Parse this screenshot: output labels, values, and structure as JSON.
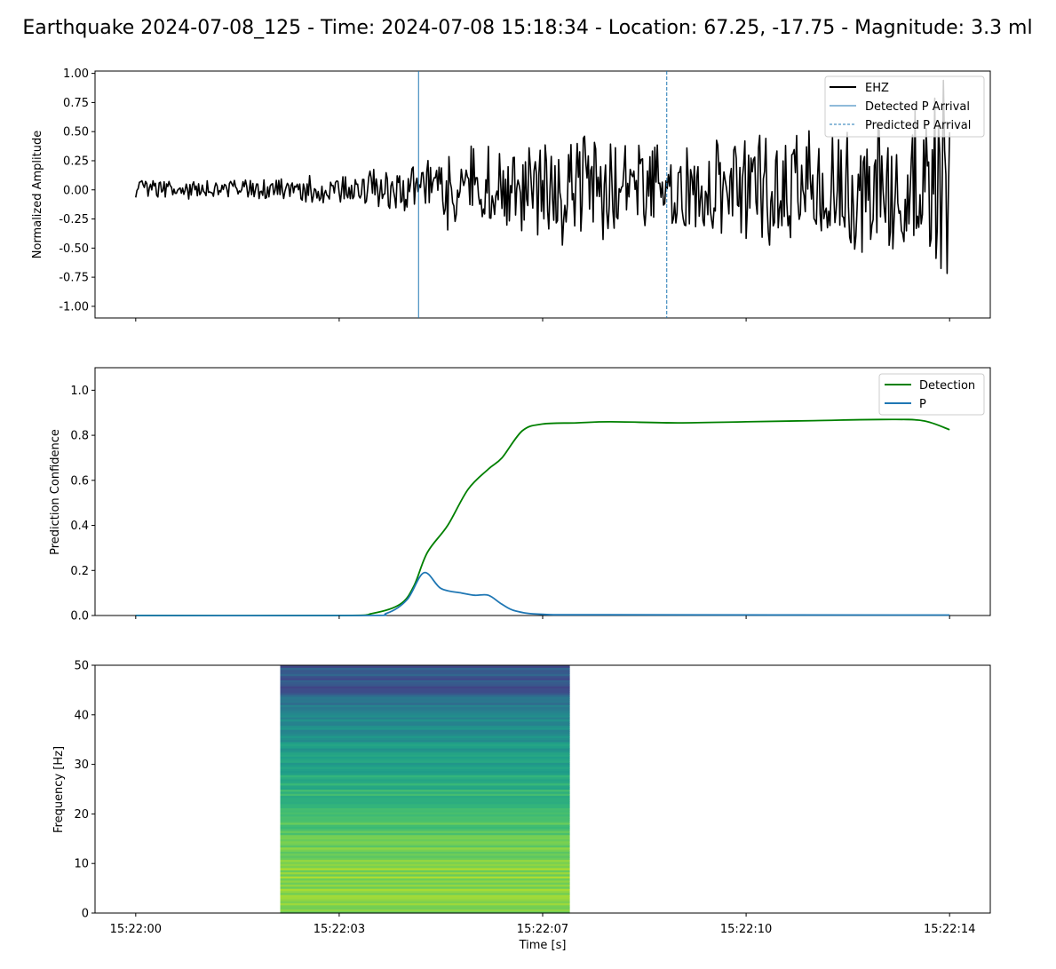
{
  "title": "Earthquake 2024-07-08_125 - Time: 2024-07-08 15:18:34 - Location: 67.25, -17.75 - Magnitude: 3.3 ml",
  "x_axis": {
    "label": "Time [s]",
    "ticks": [
      {
        "t": 0,
        "label": "15:22:00"
      },
      {
        "t": 3,
        "label": "15:22:03"
      },
      {
        "t": 6,
        "label": "15:22:07"
      },
      {
        "t": 9,
        "label": "15:22:10"
      },
      {
        "t": 12,
        "label": "15:22:14"
      }
    ],
    "range": [
      -0.6,
      12.6
    ]
  },
  "colors": {
    "waveform": "#000000",
    "detected_p": "#1f77b4",
    "predicted_p": "#1f77b4",
    "detection": "#008000",
    "p_prob": "#1f77b4"
  },
  "chart_data": [
    {
      "type": "line",
      "ylabel": "Normalized Amplitude",
      "ylim": [
        -1.1,
        1.02
      ],
      "yticks": [
        "1.00",
        "0.75",
        "0.50",
        "0.25",
        "0.00",
        "-0.25",
        "-0.50",
        "-0.75",
        "-1.00"
      ],
      "ytick_values": [
        1.0,
        0.75,
        0.5,
        0.25,
        0.0,
        -0.25,
        -0.5,
        -0.75,
        -1.0
      ],
      "legend_position": "top-right",
      "series": [
        {
          "name": "EHZ",
          "envelope": [
            [
              0,
              0.08
            ],
            [
              2,
              0.1
            ],
            [
              3,
              0.13
            ],
            [
              4,
              0.2
            ],
            [
              4.5,
              0.3
            ],
            [
              6,
              0.48
            ],
            [
              8,
              0.45
            ],
            [
              10,
              0.5
            ],
            [
              11,
              0.65
            ],
            [
              11.8,
              0.95
            ],
            [
              12,
              0.8
            ]
          ],
          "sample_count": 660
        }
      ],
      "markers": [
        {
          "name": "Detected P Arrival",
          "t": 4.17,
          "style": "solid"
        },
        {
          "name": "Predicted P Arrival",
          "t": 7.83,
          "style": "dashed"
        }
      ]
    },
    {
      "type": "line",
      "ylabel": "Prediction Confidence",
      "ylim": [
        0,
        1.1
      ],
      "yticks": [
        "1.0",
        "0.8",
        "0.6",
        "0.4",
        "0.2",
        "0.0"
      ],
      "ytick_values": [
        1.0,
        0.8,
        0.6,
        0.4,
        0.2,
        0.0
      ],
      "legend_position": "top-right",
      "series": [
        {
          "name": "Detection",
          "points": [
            [
              0,
              0.0
            ],
            [
              3.0,
              0.0
            ],
            [
              3.5,
              0.01
            ],
            [
              3.9,
              0.05
            ],
            [
              4.1,
              0.13
            ],
            [
              4.3,
              0.28
            ],
            [
              4.6,
              0.4
            ],
            [
              4.9,
              0.56
            ],
            [
              5.2,
              0.65
            ],
            [
              5.4,
              0.7
            ],
            [
              5.7,
              0.82
            ],
            [
              6.0,
              0.85
            ],
            [
              6.5,
              0.855
            ],
            [
              7.0,
              0.86
            ],
            [
              8.0,
              0.855
            ],
            [
              9.0,
              0.86
            ],
            [
              10.0,
              0.865
            ],
            [
              11.0,
              0.87
            ],
            [
              11.6,
              0.865
            ],
            [
              12.0,
              0.825
            ]
          ]
        },
        {
          "name": "P",
          "points": [
            [
              0,
              0.0
            ],
            [
              3.3,
              0.0
            ],
            [
              3.7,
              0.01
            ],
            [
              4.0,
              0.07
            ],
            [
              4.25,
              0.19
            ],
            [
              4.5,
              0.12
            ],
            [
              4.8,
              0.1
            ],
            [
              5.0,
              0.09
            ],
            [
              5.2,
              0.09
            ],
            [
              5.4,
              0.05
            ],
            [
              5.6,
              0.02
            ],
            [
              6.0,
              0.005
            ],
            [
              7.0,
              0.003
            ],
            [
              12.0,
              0.002
            ]
          ]
        }
      ]
    },
    {
      "type": "heatmap",
      "ylabel": "Frequency [Hz]",
      "ylim": [
        0,
        50
      ],
      "yticks": [
        "50",
        "40",
        "30",
        "20",
        "10",
        "0"
      ],
      "ytick_values": [
        50,
        40,
        30,
        20,
        10,
        0
      ],
      "t_range": [
        2.13,
        6.4
      ],
      "freq_range": [
        0,
        50
      ],
      "colormap": "viridis"
    }
  ]
}
